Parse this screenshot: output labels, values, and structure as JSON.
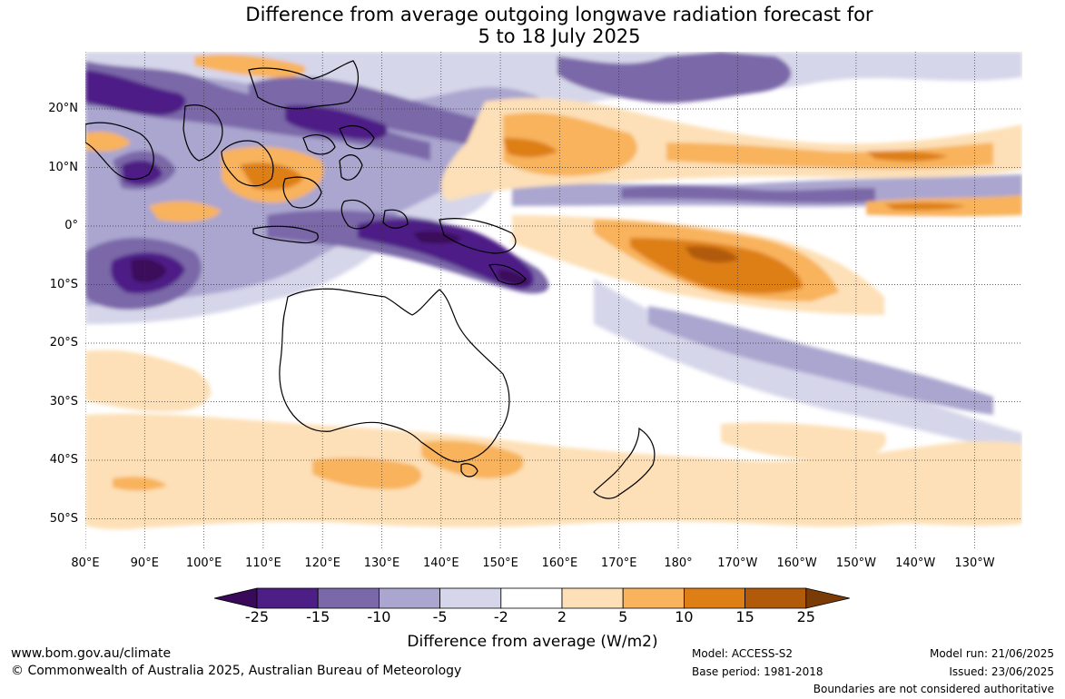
{
  "title": {
    "line1": "Difference from average outgoing longwave radiation forecast for",
    "line2": "5 to 18 July 2025"
  },
  "map": {
    "lat_labels": [
      "20°N",
      "10°N",
      "0°",
      "10°S",
      "20°S",
      "30°S",
      "40°S",
      "50°S"
    ],
    "lon_labels": [
      "80°E",
      "90°E",
      "100°E",
      "110°E",
      "120°E",
      "130°E",
      "140°E",
      "150°E",
      "160°E",
      "170°E",
      "180°",
      "170°W",
      "160°W",
      "150°W",
      "140°W",
      "130°W"
    ]
  },
  "colorbar": {
    "ticks": [
      "-25",
      "-15",
      "-10",
      "-5",
      "-2",
      "2",
      "5",
      "10",
      "15",
      "25"
    ],
    "colors": [
      "#3a0a5a",
      "#4d1f86",
      "#7a68a8",
      "#aaa6cf",
      "#d6d6ea",
      "#ffffff",
      "#fde0b7",
      "#f8b35c",
      "#de7f16",
      "#b05a0a",
      "#7a3b06"
    ],
    "label": "Difference from average (W/m2)"
  },
  "footer": {
    "url": "www.bom.gov.au/climate",
    "copyright": "© Commonwealth of Australia 2025, Australian Bureau of Meteorology",
    "model": "Model: ACCESS-S2",
    "base_period": "Base period: 1981-2018",
    "model_run": "Model run: 21/06/2025",
    "issued": "Issued: 23/06/2025",
    "boundaries": "Boundaries are not considered authoritative"
  }
}
